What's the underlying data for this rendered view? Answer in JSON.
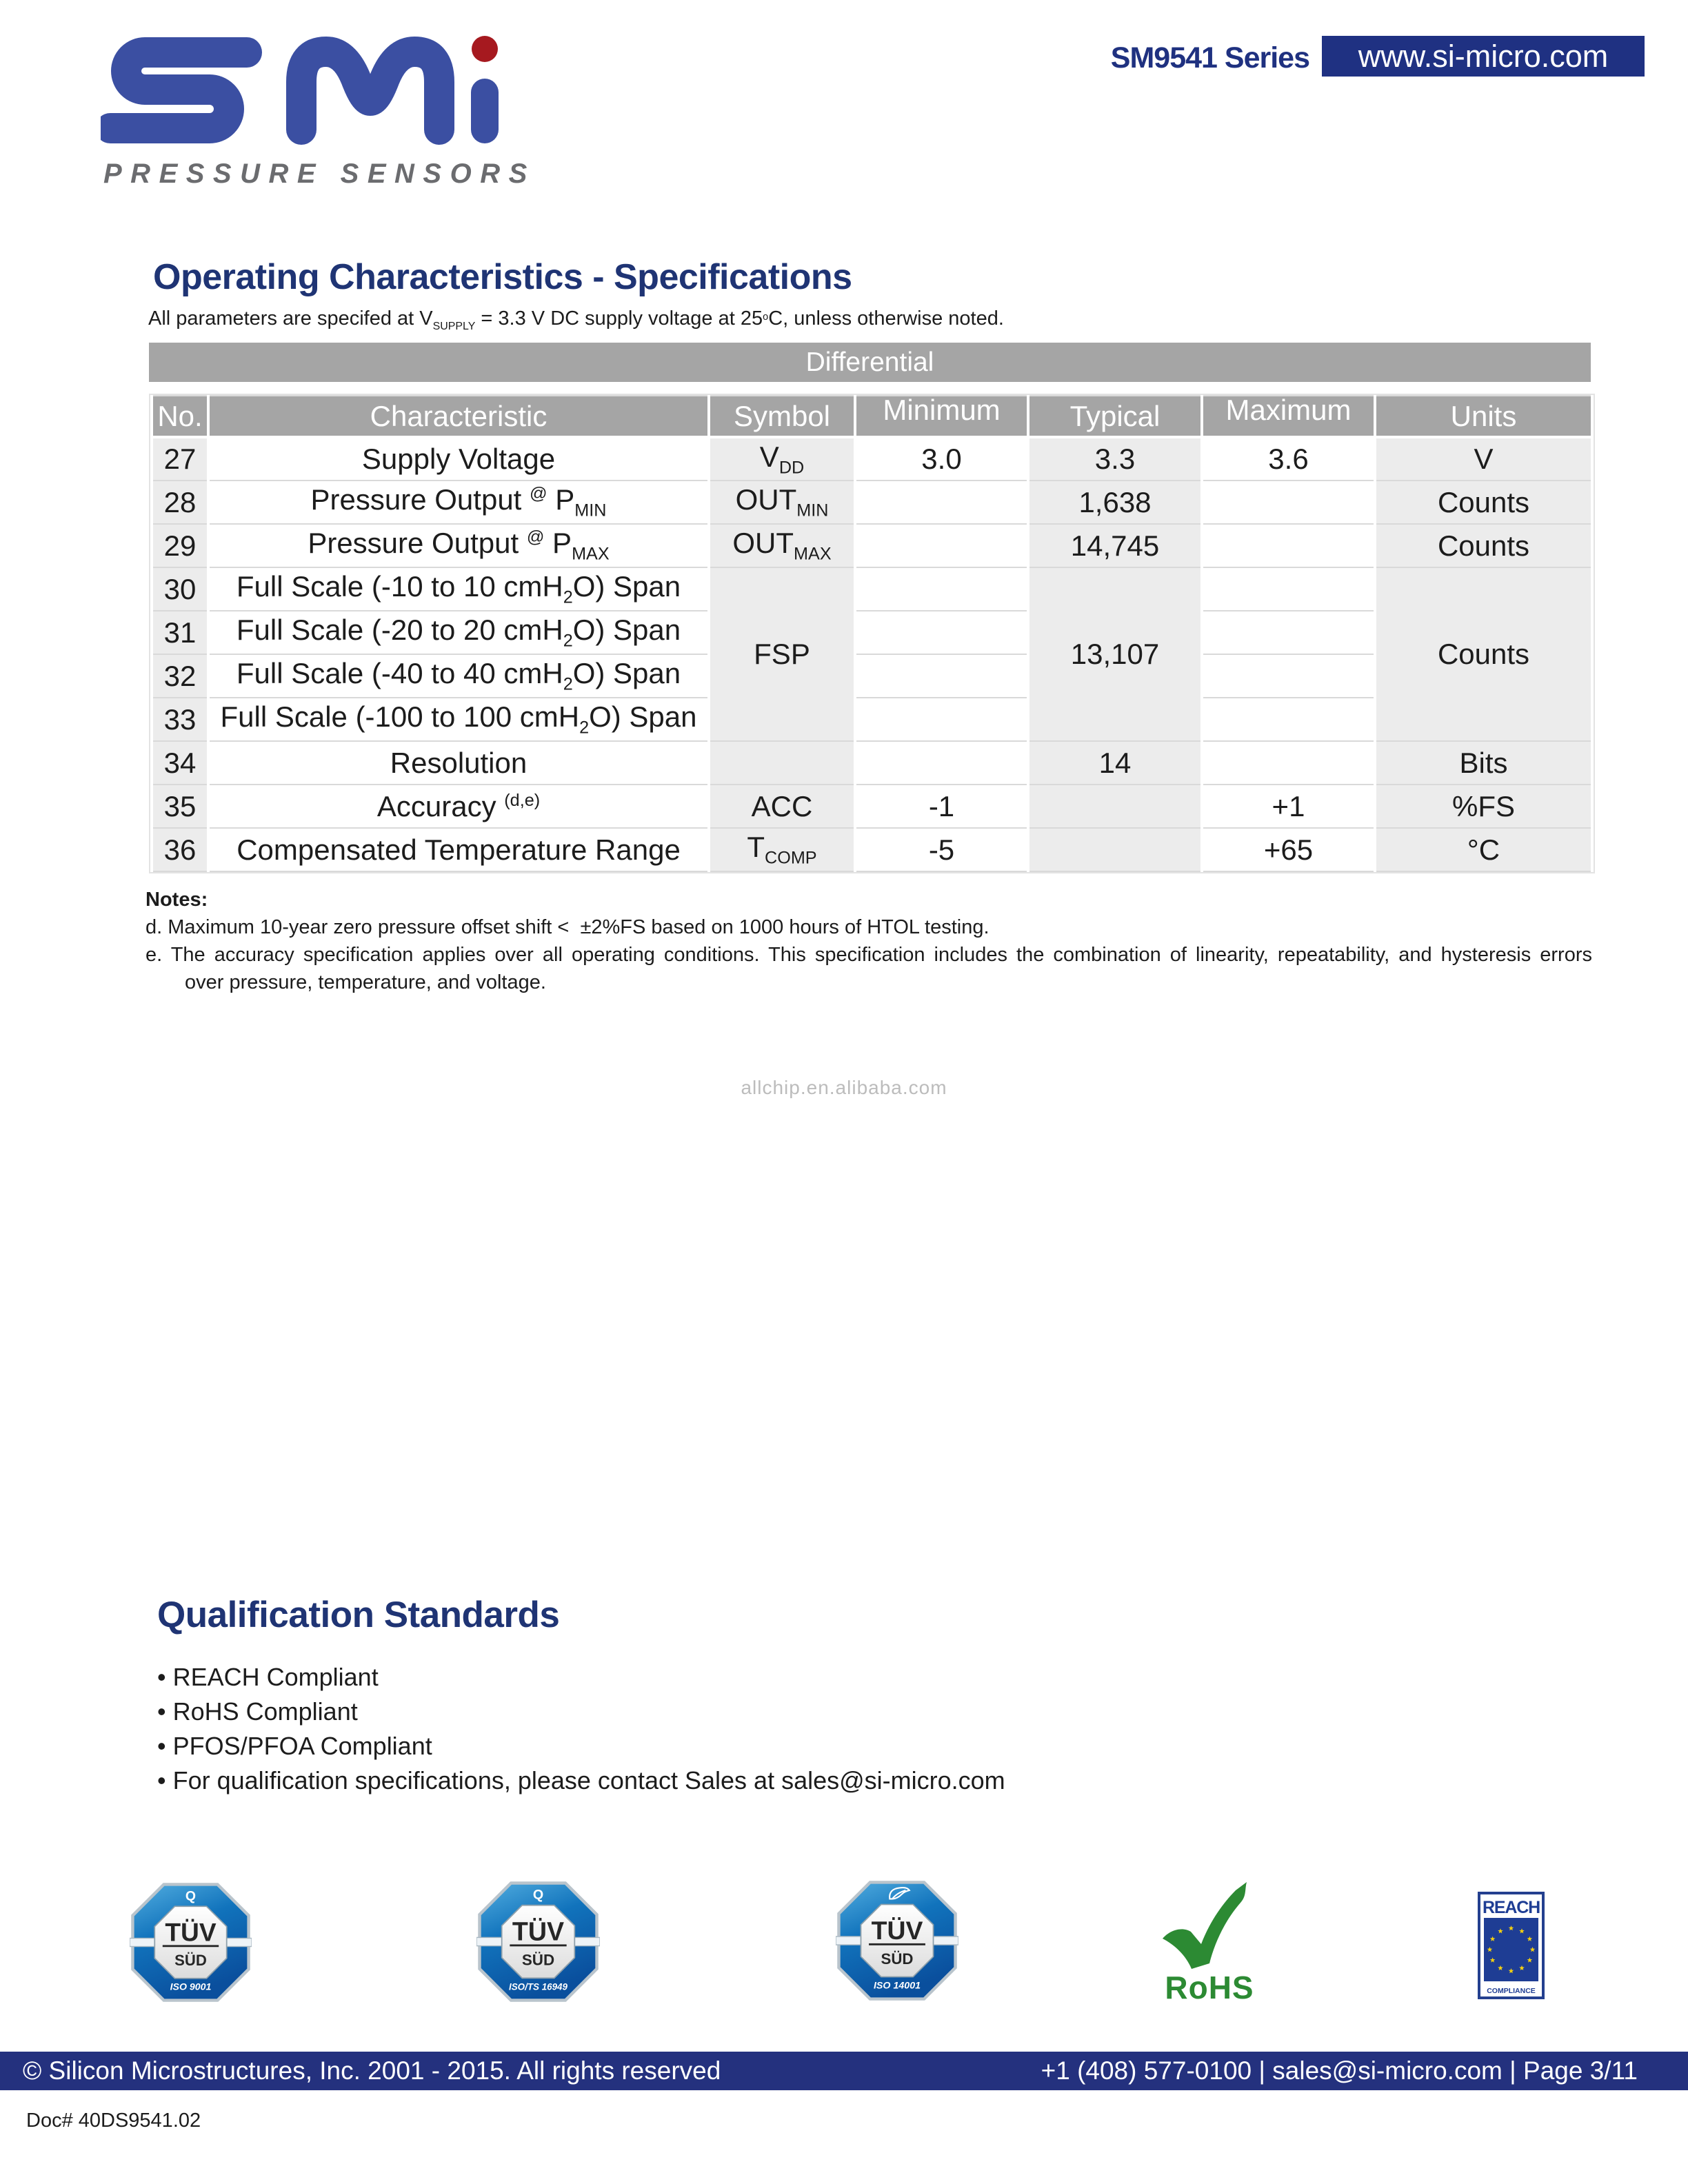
{
  "header": {
    "series": "SM9541 Series",
    "website": "www.si-micro.com",
    "brand_tagline": "PRESSURE SENSORS"
  },
  "section": {
    "title": "Operating Characteristics - Specifications",
    "subtitle": [
      {
        "t": "All parameters are specifed at V"
      },
      {
        "sub": "SUPPLY"
      },
      {
        "t": " = 3.3 V DC supply voltage at 25"
      },
      {
        "sup": "o"
      },
      {
        "t": "C, unless otherwise noted."
      }
    ]
  },
  "table": {
    "band": "Differential",
    "headers": [
      "No.",
      "Characteristic",
      "Symbol",
      "Minimum",
      "Typical",
      "Maximum",
      "Units"
    ],
    "rows": [
      {
        "no": "27",
        "characteristic": [
          {
            "t": "Supply Voltage"
          }
        ],
        "symbol": [
          {
            "t": "V"
          },
          {
            "sub": "DD"
          }
        ],
        "minimum": "3.0",
        "typical": "3.3",
        "maximum": "3.6",
        "units": "V"
      },
      {
        "no": "28",
        "characteristic": [
          {
            "t": "Pressure Output "
          },
          {
            "sup": "@"
          },
          {
            "t": " P"
          },
          {
            "sub": "MIN"
          }
        ],
        "symbol": [
          {
            "t": "OUT"
          },
          {
            "sub": "MIN"
          }
        ],
        "minimum": "",
        "typical": "1,638",
        "maximum": "",
        "units": "Counts"
      },
      {
        "no": "29",
        "characteristic": [
          {
            "t": "Pressure Output "
          },
          {
            "sup": "@"
          },
          {
            "t": " P"
          },
          {
            "sub": "MAX"
          }
        ],
        "symbol": [
          {
            "t": "OUT"
          },
          {
            "sub": "MAX"
          }
        ],
        "minimum": "",
        "typical": "14,745",
        "maximum": "",
        "units": "Counts"
      },
      {
        "no": "30",
        "characteristic": [
          {
            "t": "Full Scale (-10 to 10 cmH"
          },
          {
            "sub": "2"
          },
          {
            "t": "O) Span"
          }
        ],
        "minimum": "",
        "maximum": ""
      },
      {
        "no": "31",
        "characteristic": [
          {
            "t": "Full Scale (-20 to 20 cmH"
          },
          {
            "sub": "2"
          },
          {
            "t": "O) Span"
          }
        ],
        "minimum": "",
        "maximum": ""
      },
      {
        "no": "32",
        "characteristic": [
          {
            "t": "Full Scale (-40 to 40 cmH"
          },
          {
            "sub": "2"
          },
          {
            "t": "O) Span"
          }
        ],
        "minimum": "",
        "maximum": ""
      },
      {
        "no": "33",
        "characteristic": [
          {
            "t": "Full Scale (-100 to 100 cmH"
          },
          {
            "sub": "2"
          },
          {
            "t": "O) Span"
          }
        ],
        "minimum": "",
        "maximum": ""
      },
      {
        "no": "34",
        "characteristic": [
          {
            "t": "Resolution"
          }
        ],
        "symbol": [],
        "minimum": "",
        "typical": "14",
        "maximum": "",
        "units": "Bits"
      },
      {
        "no": "35",
        "characteristic": [
          {
            "t": "Accuracy "
          },
          {
            "sup": "(d,e)"
          }
        ],
        "symbol": [
          {
            "t": "ACC"
          }
        ],
        "minimum": "-1",
        "typical": "",
        "maximum": "+1",
        "units": "%FS"
      },
      {
        "no": "36",
        "characteristic": [
          {
            "t": "Compensated Temperature Range"
          }
        ],
        "symbol": [
          {
            "t": "T"
          },
          {
            "sub": "COMP"
          }
        ],
        "minimum": "-5",
        "typical": "",
        "maximum": "+65",
        "units": "°C"
      }
    ],
    "merged": {
      "symbol_fsp": [
        {
          "t": "FSP"
        }
      ],
      "typical_span": "13,107",
      "units_span": "Counts"
    }
  },
  "notes": {
    "label": "Notes:",
    "d": "d. Maximum 10-year zero pressure offset shift <  ±2%FS based on 1000 hours of HTOL testing.",
    "e1": "e. The accuracy specification applies over all operating conditions. This specification includes the combination of linearity, repeatability, and hysteresis errors",
    "e2": "over pressure, temperature, and voltage."
  },
  "watermark": "allchip.en.alibaba.com",
  "qualification": {
    "title": "Qualification Standards",
    "bullets": [
      "REACH Compliant",
      "RoHS Compliant",
      "PFOS/PFOA Compliant",
      "For qualification specifications, please contact Sales at sales@si-micro.com"
    ]
  },
  "badges": {
    "tuv1": {
      "top": "Q",
      "line1": "TÜV",
      "line2": "SÜD",
      "bottom": "ISO 9001"
    },
    "tuv2": {
      "top": "Q",
      "line1": "TÜV",
      "line2": "SÜD",
      "bottom": "ISO/TS 16949"
    },
    "tuv3": {
      "line1": "TÜV",
      "line2": "SÜD",
      "bottom": "ISO 14001"
    },
    "rohs": {
      "label": "RoHS"
    },
    "reach": {
      "title": "REACH",
      "bottom": "COMPLIANCE"
    }
  },
  "footer": {
    "left": "© Silicon Microstructures, Inc. 2001 - 2015. All rights reserved",
    "right": "+1 (408) 577-0100 | sales@si-micro.com | Page 3/11",
    "doc": "Doc# 40DS9541.02"
  },
  "colors": {
    "navy": "#1f3180",
    "logo_blue": "#3b4fa2",
    "logo_dot_red": "#a6191f",
    "header_gray": "#a5a5a5",
    "cell_gray": "#ececec",
    "grid_gray": "#d9d9d9",
    "tagline_gray": "#6b6c6f",
    "rohs_green": "#2e8b38",
    "eu_star_yellow": "#f4d010",
    "watermark_gray": "#bcbcbc"
  }
}
